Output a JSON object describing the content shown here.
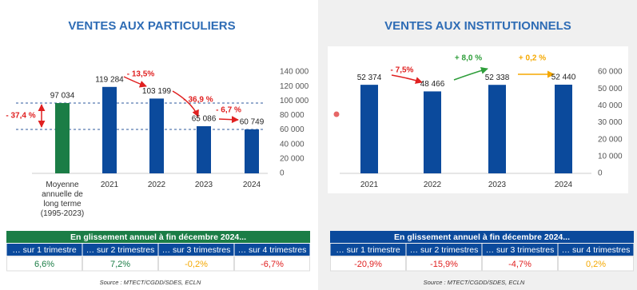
{
  "chart_data": [
    {
      "type": "bar",
      "title": "VENTES AUX PARTICULIERS",
      "categories": [
        "Moyenne annuelle de long terme (1995-2023)",
        "2021",
        "2022",
        "2023",
        "2024"
      ],
      "values": [
        97034,
        119284,
        103199,
        65086,
        60749
      ],
      "value_labels": [
        "97 034",
        "119 284",
        "103 199",
        "65 086",
        "60 749"
      ],
      "colors": [
        "#1b7d46",
        "#0b4a9c",
        "#0b4a9c",
        "#0b4a9c",
        "#0b4a9c"
      ],
      "ylim": [
        0,
        140000
      ],
      "yticks": [
        {
          "value": 0,
          "label": "0"
        },
        {
          "value": 20000,
          "label": "20 000"
        },
        {
          "value": 40000,
          "label": "40 000"
        },
        {
          "value": 60000,
          "label": "60 000"
        },
        {
          "value": 80000,
          "label": "80 000"
        },
        {
          "value": 100000,
          "label": "100 000"
        },
        {
          "value": 120000,
          "label": "120 000"
        },
        {
          "value": 140000,
          "label": "140 000"
        }
      ],
      "annotations": [
        "- 13,5%",
        "- 36,9 %",
        "- 6,7 %",
        "- 37,4 %"
      ],
      "annotation_colors": [
        "#e02020",
        "#e02020",
        "#e02020",
        "#e02020"
      ],
      "grid": false
    },
    {
      "type": "bar",
      "title": "VENTES AUX INSTITUTIONNELS",
      "categories": [
        "2021",
        "2022",
        "2023",
        "2024"
      ],
      "values": [
        52374,
        48466,
        52338,
        52440
      ],
      "value_labels": [
        "52 374",
        "48 466",
        "52 338",
        "52 440"
      ],
      "colors": [
        "#0b4a9c",
        "#0b4a9c",
        "#0b4a9c",
        "#0b4a9c"
      ],
      "ylim": [
        0,
        60000
      ],
      "yticks": [
        {
          "value": 0,
          "label": "0"
        },
        {
          "value": 10000,
          "label": "10 000"
        },
        {
          "value": 20000,
          "label": "20 000"
        },
        {
          "value": 30000,
          "label": "30 000"
        },
        {
          "value": 40000,
          "label": "40 000"
        },
        {
          "value": 50000,
          "label": "50 000"
        },
        {
          "value": 60000,
          "label": "60 000"
        }
      ],
      "annotations": [
        "- 7,5%",
        "+ 8,0 %",
        "+ 0,2 %"
      ],
      "annotation_colors": [
        "#e02020",
        "#2e9e3a",
        "#f5a800"
      ],
      "grid": false
    }
  ],
  "tables": [
    {
      "title": "En glissement annuel à fin décembre 2024...",
      "title_color": "#1b7d46",
      "columns": [
        "… sur 1 trimestre",
        "… sur 2 trimestres",
        "… sur 3 trimestres",
        "… sur 4 trimestres"
      ],
      "values": [
        "6,6%",
        "7,2%",
        "-0,2%",
        "-6,7%"
      ],
      "colors": [
        "#1b7d46",
        "#1b7d46",
        "#f5a800",
        "#e02020"
      ],
      "source": "Source : MTECT/CGDD/SDES, ECLN"
    },
    {
      "title": "En glissement annuel à fin décembre 2024...",
      "title_color": "#0b4a9c",
      "columns": [
        "… sur 1 trimestre",
        "… sur 2 trimestres",
        "… sur 3 trimestres",
        "… sur 4 trimestres"
      ],
      "values": [
        "-20,9%",
        "-15,9%",
        "-4,7%",
        "0,2%"
      ],
      "colors": [
        "#e02020",
        "#e02020",
        "#e02020",
        "#f5a800"
      ],
      "source": "Source : MTECT/CGDD/SDES, ECLN"
    }
  ]
}
